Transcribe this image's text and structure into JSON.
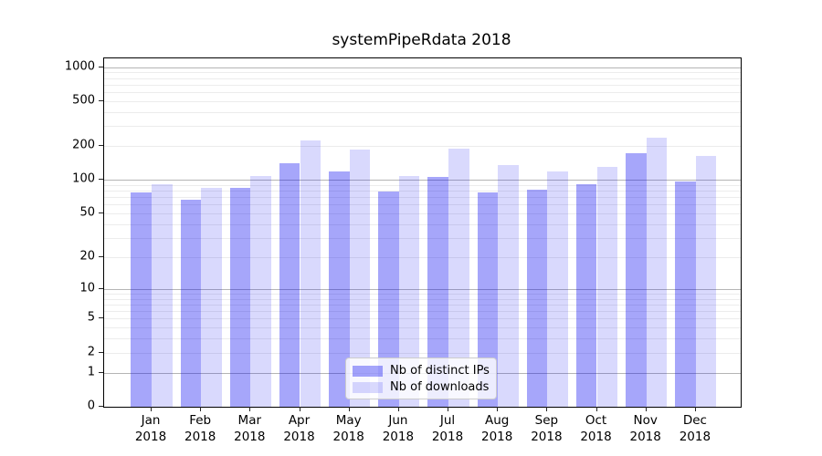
{
  "chart_data": {
    "type": "bar",
    "title": "systemPipeRdata 2018",
    "categories": [
      "Jan",
      "Feb",
      "Mar",
      "Apr",
      "May",
      "Jun",
      "Jul",
      "Aug",
      "Sep",
      "Oct",
      "Nov",
      "Dec"
    ],
    "x_year_label": "2018",
    "series": [
      {
        "name": "Nb of distinct IPs",
        "values": [
          77,
          66,
          85,
          142,
          118,
          79,
          106,
          78,
          82,
          92,
          172,
          97
        ],
        "fill": "rgba(0,0,240,0.35)"
      },
      {
        "name": "Nb of downloads",
        "values": [
          91,
          85,
          108,
          223,
          187,
          108,
          189,
          135,
          119,
          130,
          236,
          162
        ],
        "fill": "rgba(0,0,240,0.15)"
      }
    ],
    "yscale": "symlog-log1p",
    "y_ticks": [
      1000,
      500,
      200,
      100,
      50,
      20,
      10,
      5,
      2,
      1,
      0
    ],
    "ylim": [
      0,
      1195
    ],
    "grid": "on",
    "grid_major_at": [
      1,
      10,
      100,
      1000
    ],
    "grid_minor_decades": [
      1,
      10,
      100
    ],
    "legend_position": "inside-bottom-center",
    "colors": {
      "major_grid": "#b5b5b5",
      "minor_grid": "#ececec",
      "axis_border": "#000000",
      "legend_border": "#cccccc"
    }
  }
}
